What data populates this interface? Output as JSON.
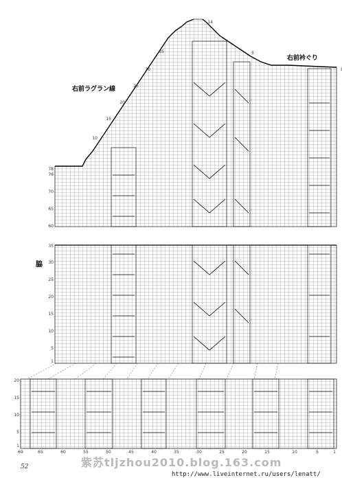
{
  "labels": {
    "raglan": "右前ラグラン線",
    "neckline": "右前衿ぐり",
    "side": "脇"
  },
  "top_chart_rows": [
    "78",
    "76",
    "70",
    "65",
    "60"
  ],
  "top_chart_upper_rows": [
    "10",
    "15",
    "20",
    "25",
    "30",
    "35"
  ],
  "top_peak_row": "14",
  "top_right_marks": [
    "5",
    "8"
  ],
  "middle_chart_rows": [
    "35",
    "30",
    "25",
    "20",
    "15",
    "10",
    "5",
    "1"
  ],
  "bottom_chart_rows": [
    "20",
    "15",
    "10",
    "5",
    "1"
  ],
  "bottom_columns": [
    "69",
    "65",
    "60",
    "55",
    "50",
    "45",
    "40",
    "35",
    "30",
    "25",
    "20",
    "15",
    "10",
    "5",
    "1"
  ],
  "page_number": "52",
  "watermark": "紫苏tljzhou2010.blog.163.com",
  "url": "http://www.liveinternet.ru/users/lenatt/"
}
